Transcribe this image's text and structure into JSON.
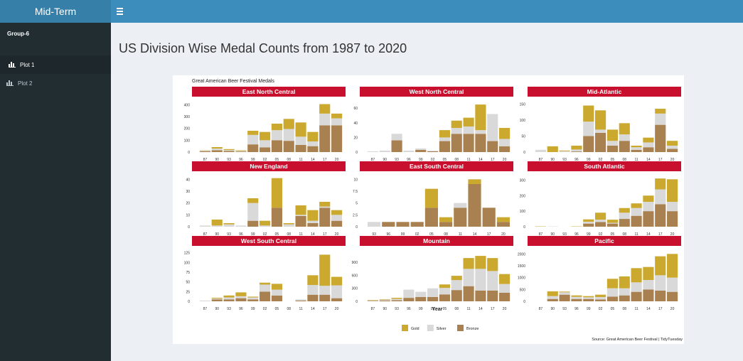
{
  "app": {
    "title": "Mid-Term"
  },
  "sidebar": {
    "user": "Group-6",
    "items": [
      {
        "label": "Plot 1",
        "active": true
      },
      {
        "label": "Plot 2",
        "active": false
      }
    ]
  },
  "main": {
    "title": "US Division Wise Medal Counts from 1987 to 2020"
  },
  "colors": {
    "gold": "#cba82e",
    "silver": "#d9d9d9",
    "bronze": "#a98150",
    "strip": "#c8102e",
    "header": "#3c8dbc",
    "logo": "#367fa9",
    "sidebar": "#222d32"
  },
  "chart_data": {
    "type": "bar",
    "stacked": true,
    "title": "Great American Beer Festival Medals",
    "xlabel": "Year",
    "caption": "Source:  Great American Beer Festival | TidyTuesday",
    "legend": [
      "Gold",
      "Silver",
      "Bronze"
    ],
    "legend_position": "bottom",
    "grid": false,
    "panels": [
      {
        "name": "East North Central",
        "ylim": [
          0,
          420
        ],
        "yticks": [
          0,
          100,
          200,
          300,
          400
        ],
        "tick_labels": [
          "87",
          "90",
          "93",
          "96",
          "99",
          "02",
          "05",
          "08",
          "11",
          "14",
          "17",
          "20"
        ],
        "bars": [
          {
            "x": 1987,
            "gold": 2,
            "silver": 5,
            "bronze": 8
          },
          {
            "x": 1990,
            "gold": 12,
            "silver": 15,
            "bronze": 15
          },
          {
            "x": 1993,
            "gold": 8,
            "silver": 8,
            "bronze": 9
          },
          {
            "x": 1996,
            "gold": 5,
            "silver": 5,
            "bronze": 5
          },
          {
            "x": 1999,
            "gold": 35,
            "silver": 80,
            "bronze": 65
          },
          {
            "x": 2002,
            "gold": 70,
            "silver": 60,
            "bronze": 40
          },
          {
            "x": 2005,
            "gold": 55,
            "silver": 85,
            "bronze": 100
          },
          {
            "x": 2008,
            "gold": 85,
            "silver": 100,
            "bronze": 95
          },
          {
            "x": 2011,
            "gold": 120,
            "silver": 70,
            "bronze": 60
          },
          {
            "x": 2014,
            "gold": 80,
            "silver": 40,
            "bronze": 50
          },
          {
            "x": 2017,
            "gold": 80,
            "silver": 100,
            "bronze": 225
          },
          {
            "x": 2020,
            "gold": 40,
            "silver": 60,
            "bronze": 225
          }
        ]
      },
      {
        "name": "West North Central",
        "ylim": [
          0,
          68
        ],
        "yticks": [
          0,
          20,
          40,
          60
        ],
        "tick_labels": [
          "87",
          "90",
          "93",
          "96",
          "99",
          "02",
          "05",
          "08",
          "11",
          "14",
          "17",
          "20"
        ],
        "bars": [
          {
            "x": 1987,
            "gold": 0,
            "silver": 1,
            "bronze": 0
          },
          {
            "x": 1990,
            "gold": 0,
            "silver": 2,
            "bronze": 0
          },
          {
            "x": 1993,
            "gold": 0,
            "silver": 9,
            "bronze": 16
          },
          {
            "x": 1996,
            "gold": 0,
            "silver": 2,
            "bronze": 0
          },
          {
            "x": 1999,
            "gold": 0,
            "silver": 2,
            "bronze": 3
          },
          {
            "x": 2002,
            "gold": 0,
            "silver": 1,
            "bronze": 1
          },
          {
            "x": 2005,
            "gold": 10,
            "silver": 5,
            "bronze": 15
          },
          {
            "x": 2008,
            "gold": 10,
            "silver": 8,
            "bronze": 25
          },
          {
            "x": 2011,
            "gold": 12,
            "silver": 10,
            "bronze": 25
          },
          {
            "x": 2014,
            "gold": 35,
            "silver": 5,
            "bronze": 25
          },
          {
            "x": 2017,
            "gold": 0,
            "silver": 37,
            "bronze": 15
          },
          {
            "x": 2020,
            "gold": 15,
            "silver": 10,
            "bronze": 8
          }
        ]
      },
      {
        "name": "Mid-Atlantic",
        "ylim": [
          0,
          155
        ],
        "yticks": [
          0,
          50,
          100,
          150
        ],
        "tick_labels": [
          "87",
          "90",
          "93",
          "96",
          "99",
          "02",
          "05",
          "08",
          "11",
          "14",
          "17",
          "20"
        ],
        "bars": [
          {
            "x": 1987,
            "gold": 0,
            "silver": 7,
            "bronze": 0
          },
          {
            "x": 1990,
            "gold": 18,
            "silver": 0,
            "bronze": 0
          },
          {
            "x": 1993,
            "gold": 2,
            "silver": 3,
            "bronze": 0
          },
          {
            "x": 1996,
            "gold": 12,
            "silver": 6,
            "bronze": 2
          },
          {
            "x": 1999,
            "gold": 50,
            "silver": 45,
            "bronze": 50
          },
          {
            "x": 2002,
            "gold": 60,
            "silver": 10,
            "bronze": 60
          },
          {
            "x": 2005,
            "gold": 35,
            "silver": 15,
            "bronze": 20
          },
          {
            "x": 2008,
            "gold": 35,
            "silver": 20,
            "bronze": 35
          },
          {
            "x": 2011,
            "gold": 5,
            "silver": 8,
            "bronze": 7
          },
          {
            "x": 2014,
            "gold": 15,
            "silver": 15,
            "bronze": 15
          },
          {
            "x": 2017,
            "gold": 15,
            "silver": 35,
            "bronze": 85
          },
          {
            "x": 2020,
            "gold": 15,
            "silver": 10,
            "bronze": 10
          }
        ]
      },
      {
        "name": "New England",
        "ylim": [
          0,
          42
        ],
        "yticks": [
          0,
          10,
          20,
          30,
          40
        ],
        "tick_labels": [
          "87",
          "90",
          "93",
          "96",
          "99",
          "02",
          "05",
          "08",
          "11",
          "14",
          "17",
          "20"
        ],
        "bars": [
          {
            "x": 1987,
            "gold": 0,
            "silver": 1,
            "bronze": 0
          },
          {
            "x": 1990,
            "gold": 5,
            "silver": 1,
            "bronze": 0
          },
          {
            "x": 1993,
            "gold": 1,
            "silver": 2,
            "bronze": 0
          },
          {
            "x": 1996,
            "gold": 0,
            "silver": 1,
            "bronze": 0
          },
          {
            "x": 1999,
            "gold": 4,
            "silver": 15,
            "bronze": 5
          },
          {
            "x": 2002,
            "gold": 4,
            "silver": 1,
            "bronze": 0
          },
          {
            "x": 2005,
            "gold": 25,
            "silver": 0,
            "bronze": 16
          },
          {
            "x": 2008,
            "gold": 1,
            "silver": 2,
            "bronze": 0
          },
          {
            "x": 2011,
            "gold": 8,
            "silver": 1,
            "bronze": 9
          },
          {
            "x": 2014,
            "gold": 9,
            "silver": 2,
            "bronze": 3
          },
          {
            "x": 2017,
            "gold": 4,
            "silver": 1,
            "bronze": 16
          },
          {
            "x": 2020,
            "gold": 4,
            "silver": 5,
            "bronze": 5
          }
        ]
      },
      {
        "name": "East South Central",
        "ylim": [
          0,
          10.5
        ],
        "yticks": [
          0,
          2.5,
          5.0,
          7.5,
          10.0
        ],
        "tick_labels": [
          "93",
          "96",
          "99",
          "02",
          "05",
          "08",
          "11",
          "14",
          "17",
          "20"
        ],
        "bars": [
          {
            "x": 1993,
            "gold": 0,
            "silver": 1,
            "bronze": 0
          },
          {
            "x": 1996,
            "gold": 0,
            "silver": 0,
            "bronze": 1
          },
          {
            "x": 1999,
            "gold": 0,
            "silver": 0,
            "bronze": 1
          },
          {
            "x": 2002,
            "gold": 0,
            "silver": 0,
            "bronze": 1
          },
          {
            "x": 2005,
            "gold": 4,
            "silver": 0,
            "bronze": 4
          },
          {
            "x": 2008,
            "gold": 1,
            "silver": 0,
            "bronze": 1
          },
          {
            "x": 2011,
            "gold": 0,
            "silver": 1,
            "bronze": 4
          },
          {
            "x": 2014,
            "gold": 1,
            "silver": 0,
            "bronze": 9
          },
          {
            "x": 2017,
            "gold": 0,
            "silver": 0,
            "bronze": 4
          },
          {
            "x": 2020,
            "gold": 1,
            "silver": 0,
            "bronze": 1
          }
        ]
      },
      {
        "name": "South Atlantic",
        "ylim": [
          0,
          320
        ],
        "yticks": [
          0,
          100,
          200,
          300
        ],
        "tick_labels": [
          "87",
          "90",
          "93",
          "96",
          "99",
          "02",
          "05",
          "08",
          "11",
          "14",
          "17",
          "20"
        ],
        "bars": [
          {
            "x": 1987,
            "gold": 2,
            "silver": 0,
            "bronze": 0
          },
          {
            "x": 1990,
            "gold": 0,
            "silver": 2,
            "bronze": 0
          },
          {
            "x": 1993,
            "gold": 0,
            "silver": 0,
            "bronze": 0
          },
          {
            "x": 1996,
            "gold": 2,
            "silver": 0,
            "bronze": 0
          },
          {
            "x": 1999,
            "gold": 15,
            "silver": 12,
            "bronze": 20
          },
          {
            "x": 2002,
            "gold": 45,
            "silver": 15,
            "bronze": 30
          },
          {
            "x": 2005,
            "gold": 20,
            "silver": 5,
            "bronze": 20
          },
          {
            "x": 2008,
            "gold": 30,
            "silver": 40,
            "bronze": 50
          },
          {
            "x": 2011,
            "gold": 30,
            "silver": 50,
            "bronze": 70
          },
          {
            "x": 2014,
            "gold": 40,
            "silver": 60,
            "bronze": 100
          },
          {
            "x": 2017,
            "gold": 70,
            "silver": 95,
            "bronze": 145
          },
          {
            "x": 2020,
            "gold": 145,
            "silver": 60,
            "bronze": 100
          }
        ]
      },
      {
        "name": "West South Central",
        "ylim": [
          0,
          128
        ],
        "yticks": [
          0,
          25,
          50,
          75,
          100,
          125
        ],
        "tick_labels": [
          "87",
          "90",
          "93",
          "96",
          "99",
          "02",
          "05",
          "08",
          "11",
          "14",
          "17",
          "20"
        ],
        "bars": [
          {
            "x": 1987,
            "gold": 0,
            "silver": 2,
            "bronze": 0
          },
          {
            "x": 1990,
            "gold": 2,
            "silver": 2,
            "bronze": 5
          },
          {
            "x": 1993,
            "gold": 5,
            "silver": 5,
            "bronze": 5
          },
          {
            "x": 1996,
            "gold": 10,
            "silver": 5,
            "bronze": 8
          },
          {
            "x": 1999,
            "gold": 2,
            "silver": 5,
            "bronze": 5
          },
          {
            "x": 2002,
            "gold": 5,
            "silver": 18,
            "bronze": 25
          },
          {
            "x": 2005,
            "gold": 15,
            "silver": 15,
            "bronze": 15
          },
          {
            "x": 2008,
            "gold": 0,
            "silver": 0,
            "bronze": 0
          },
          {
            "x": 2011,
            "gold": 0,
            "silver": 3,
            "bronze": 2
          },
          {
            "x": 2014,
            "gold": 25,
            "silver": 25,
            "bronze": 17
          },
          {
            "x": 2017,
            "gold": 80,
            "silver": 23,
            "bronze": 17
          },
          {
            "x": 2020,
            "gold": 22,
            "silver": 33,
            "bronze": 8
          }
        ]
      },
      {
        "name": "Mountain",
        "ylim": [
          0,
          1150
        ],
        "yticks": [
          0,
          300,
          600,
          900
        ],
        "tick_labels": [
          "87",
          "90",
          "93",
          "96",
          "99",
          "02",
          "05",
          "08",
          "11",
          "14",
          "17",
          "20"
        ],
        "bars": [
          {
            "x": 1987,
            "gold": 10,
            "silver": 10,
            "bronze": 10
          },
          {
            "x": 1990,
            "gold": 10,
            "silver": 20,
            "bronze": 20
          },
          {
            "x": 1993,
            "gold": 25,
            "silver": 30,
            "bronze": 25
          },
          {
            "x": 1996,
            "gold": 0,
            "silver": 190,
            "bronze": 80
          },
          {
            "x": 1999,
            "gold": 0,
            "silver": 120,
            "bronze": 100
          },
          {
            "x": 2002,
            "gold": 0,
            "silver": 200,
            "bronze": 100
          },
          {
            "x": 2005,
            "gold": 80,
            "silver": 150,
            "bronze": 160
          },
          {
            "x": 2008,
            "gold": 100,
            "silver": 230,
            "bronze": 260
          },
          {
            "x": 2011,
            "gold": 250,
            "silver": 400,
            "bronze": 350
          },
          {
            "x": 2014,
            "gold": 300,
            "silver": 500,
            "bronze": 250
          },
          {
            "x": 2017,
            "gold": 300,
            "silver": 450,
            "bronze": 250
          },
          {
            "x": 2020,
            "gold": 230,
            "silver": 200,
            "bronze": 200
          }
        ]
      },
      {
        "name": "Pacific",
        "ylim": [
          0,
          2100
        ],
        "yticks": [
          0,
          500,
          1000,
          1500,
          2000
        ],
        "tick_labels": [
          "87",
          "90",
          "93",
          "96",
          "99",
          "02",
          "05",
          "08",
          "11",
          "14",
          "17",
          "20"
        ],
        "bars": [
          {
            "x": 1987,
            "gold": 0,
            "silver": 0,
            "bronze": 0
          },
          {
            "x": 1990,
            "gold": 200,
            "silver": 120,
            "bronze": 100
          },
          {
            "x": 1993,
            "gold": 30,
            "silver": 100,
            "bronze": 280
          },
          {
            "x": 1996,
            "gold": 60,
            "silver": 90,
            "bronze": 100
          },
          {
            "x": 1999,
            "gold": 50,
            "silver": 70,
            "bronze": 100
          },
          {
            "x": 2002,
            "gold": 100,
            "silver": 100,
            "bronze": 80
          },
          {
            "x": 2005,
            "gold": 400,
            "silver": 350,
            "bronze": 200
          },
          {
            "x": 2008,
            "gold": 500,
            "silver": 300,
            "bronze": 250
          },
          {
            "x": 2011,
            "gold": 600,
            "silver": 400,
            "bronze": 400
          },
          {
            "x": 2014,
            "gold": 550,
            "silver": 400,
            "bronze": 500
          },
          {
            "x": 2017,
            "gold": 800,
            "silver": 650,
            "bronze": 450
          },
          {
            "x": 2020,
            "gold": 1000,
            "silver": 600,
            "bronze": 400
          }
        ]
      }
    ]
  }
}
